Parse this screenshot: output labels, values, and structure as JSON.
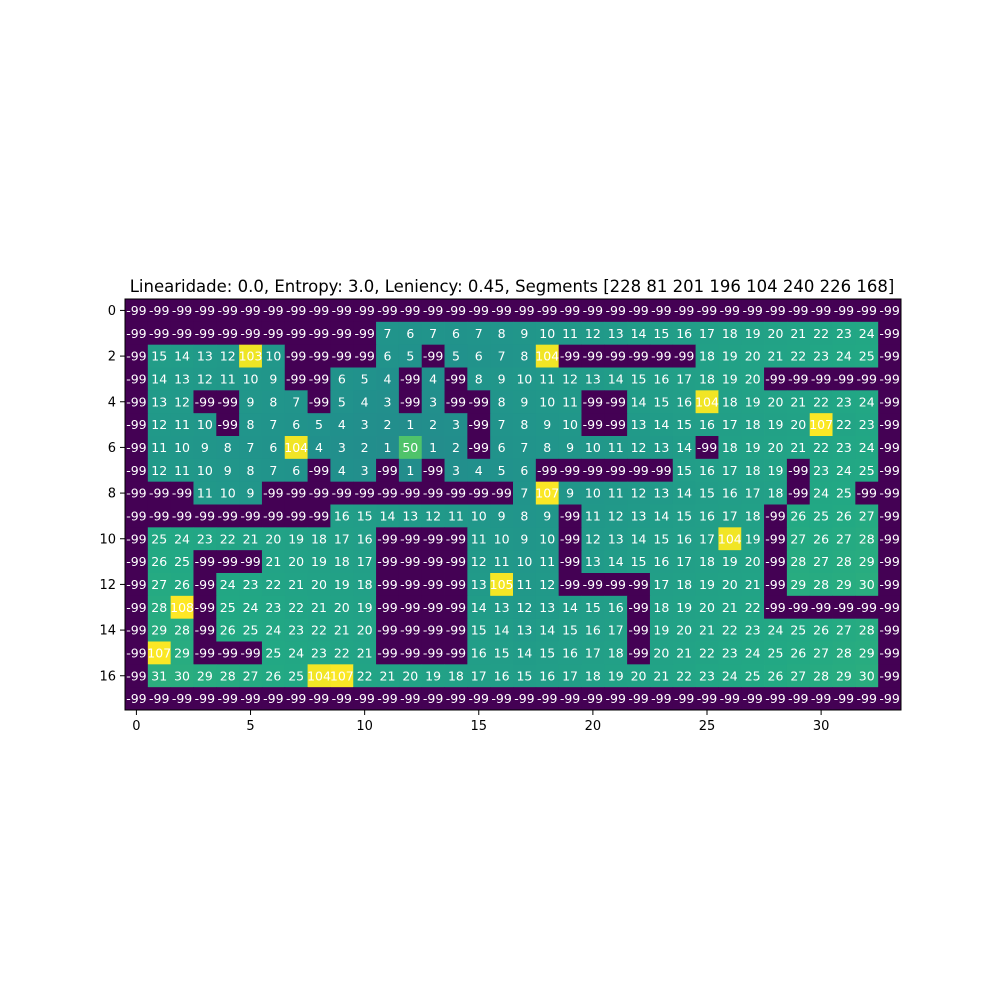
{
  "chart_data": {
    "type": "heatmap",
    "title": "Linearidade: 0.0, Entropy: 3.0, Leniency: 0.45, Segments [228  81 201 196 104 240 226 168]",
    "xlabel": "",
    "ylabel": "",
    "x_ticks": [
      0,
      5,
      10,
      15,
      20,
      25,
      30
    ],
    "y_ticks": [
      0,
      2,
      4,
      6,
      8,
      10,
      12,
      14,
      16
    ],
    "colormap": "viridis",
    "vmin": -99,
    "vmax": 108,
    "colors": {
      "wall": "#440154",
      "low": "#24868e",
      "mid": "#4fc16b",
      "high": "#fde725"
    },
    "grid": [
      [
        -99,
        -99,
        -99,
        -99,
        -99,
        -99,
        -99,
        -99,
        -99,
        -99,
        -99,
        -99,
        -99,
        -99,
        -99,
        -99,
        -99,
        -99,
        -99,
        -99,
        -99,
        -99,
        -99,
        -99,
        -99,
        -99,
        -99,
        -99,
        -99,
        -99,
        -99,
        -99,
        -99,
        -99
      ],
      [
        -99,
        -99,
        -99,
        -99,
        -99,
        -99,
        -99,
        -99,
        -99,
        -99,
        -99,
        7,
        6,
        7,
        6,
        7,
        8,
        9,
        10,
        11,
        12,
        13,
        14,
        15,
        16,
        17,
        18,
        19,
        20,
        21,
        22,
        23,
        24,
        -99
      ],
      [
        -99,
        15,
        14,
        13,
        12,
        103,
        10,
        -99,
        -99,
        -99,
        -99,
        6,
        5,
        -99,
        5,
        6,
        7,
        8,
        104,
        -99,
        -99,
        -99,
        -99,
        -99,
        -99,
        18,
        19,
        20,
        21,
        22,
        23,
        24,
        25,
        -99
      ],
      [
        -99,
        14,
        13,
        12,
        11,
        10,
        9,
        -99,
        -99,
        6,
        5,
        4,
        -99,
        4,
        -99,
        8,
        9,
        10,
        11,
        12,
        13,
        14,
        15,
        16,
        17,
        18,
        19,
        20,
        -99,
        -99,
        -99,
        -99,
        -99,
        -99
      ],
      [
        -99,
        13,
        12,
        -99,
        -99,
        9,
        8,
        7,
        -99,
        5,
        4,
        3,
        -99,
        3,
        -99,
        -99,
        8,
        9,
        10,
        11,
        -99,
        -99,
        14,
        15,
        16,
        104,
        18,
        19,
        20,
        21,
        22,
        23,
        24,
        -99
      ],
      [
        -99,
        12,
        11,
        10,
        -99,
        8,
        7,
        6,
        5,
        4,
        3,
        2,
        1,
        2,
        3,
        -99,
        7,
        8,
        9,
        10,
        -99,
        -99,
        13,
        14,
        15,
        16,
        17,
        18,
        19,
        20,
        107,
        22,
        23,
        -99
      ],
      [
        -99,
        11,
        10,
        9,
        8,
        7,
        6,
        104,
        4,
        3,
        2,
        1,
        50,
        1,
        2,
        -99,
        6,
        7,
        8,
        9,
        10,
        11,
        12,
        13,
        14,
        -99,
        18,
        19,
        20,
        21,
        22,
        23,
        24,
        -99
      ],
      [
        -99,
        12,
        11,
        10,
        9,
        8,
        7,
        6,
        -99,
        4,
        3,
        -99,
        1,
        -99,
        3,
        4,
        5,
        6,
        -99,
        -99,
        -99,
        -99,
        -99,
        -99,
        15,
        16,
        17,
        18,
        19,
        -99,
        23,
        24,
        25,
        -99
      ],
      [
        -99,
        -99,
        -99,
        11,
        10,
        9,
        -99,
        -99,
        -99,
        -99,
        -99,
        -99,
        -99,
        -99,
        -99,
        -99,
        -99,
        7,
        107,
        9,
        10,
        11,
        12,
        13,
        14,
        15,
        16,
        17,
        18,
        -99,
        24,
        25,
        -99,
        -99
      ],
      [
        -99,
        -99,
        -99,
        -99,
        -99,
        -99,
        -99,
        -99,
        -99,
        16,
        15,
        14,
        13,
        12,
        11,
        10,
        9,
        8,
        9,
        -99,
        11,
        12,
        13,
        14,
        15,
        16,
        17,
        18,
        -99,
        26,
        25,
        26,
        27,
        -99
      ],
      [
        -99,
        25,
        24,
        23,
        22,
        21,
        20,
        19,
        18,
        17,
        16,
        -99,
        -99,
        -99,
        -99,
        11,
        10,
        9,
        10,
        -99,
        12,
        13,
        14,
        15,
        16,
        17,
        104,
        19,
        -99,
        27,
        26,
        27,
        28,
        -99
      ],
      [
        -99,
        26,
        25,
        -99,
        -99,
        -99,
        21,
        20,
        19,
        18,
        17,
        -99,
        -99,
        -99,
        -99,
        12,
        11,
        10,
        11,
        -99,
        13,
        14,
        15,
        16,
        17,
        18,
        19,
        20,
        -99,
        28,
        27,
        28,
        29,
        -99
      ],
      [
        -99,
        27,
        26,
        -99,
        24,
        23,
        22,
        21,
        20,
        19,
        18,
        -99,
        -99,
        -99,
        -99,
        13,
        105,
        11,
        12,
        -99,
        -99,
        -99,
        -99,
        17,
        18,
        19,
        20,
        21,
        -99,
        29,
        28,
        29,
        30,
        -99
      ],
      [
        -99,
        28,
        108,
        -99,
        25,
        24,
        23,
        22,
        21,
        20,
        19,
        -99,
        -99,
        -99,
        -99,
        14,
        13,
        12,
        13,
        14,
        15,
        16,
        -99,
        18,
        19,
        20,
        21,
        22,
        -99,
        -99,
        -99,
        -99,
        -99,
        -99
      ],
      [
        -99,
        29,
        28,
        -99,
        26,
        25,
        24,
        23,
        22,
        21,
        20,
        -99,
        -99,
        -99,
        -99,
        15,
        14,
        13,
        14,
        15,
        16,
        17,
        -99,
        19,
        20,
        21,
        22,
        23,
        24,
        25,
        26,
        27,
        28,
        -99
      ],
      [
        -99,
        107,
        29,
        -99,
        -99,
        -99,
        25,
        24,
        23,
        22,
        21,
        -99,
        -99,
        -99,
        -99,
        16,
        15,
        14,
        15,
        16,
        17,
        18,
        -99,
        20,
        21,
        22,
        23,
        24,
        25,
        26,
        27,
        28,
        29,
        -99
      ],
      [
        -99,
        31,
        30,
        29,
        28,
        27,
        26,
        25,
        104,
        107,
        22,
        21,
        20,
        19,
        18,
        17,
        16,
        15,
        16,
        17,
        18,
        19,
        20,
        21,
        22,
        23,
        24,
        25,
        26,
        27,
        28,
        29,
        30,
        -99
      ],
      [
        -99,
        -99,
        -99,
        -99,
        -99,
        -99,
        -99,
        -99,
        -99,
        -99,
        -99,
        -99,
        -99,
        -99,
        -99,
        -99,
        -99,
        -99,
        -99,
        -99,
        -99,
        -99,
        -99,
        -99,
        -99,
        -99,
        -99,
        -99,
        -99,
        -99,
        -99,
        -99,
        -99,
        -99
      ]
    ]
  }
}
